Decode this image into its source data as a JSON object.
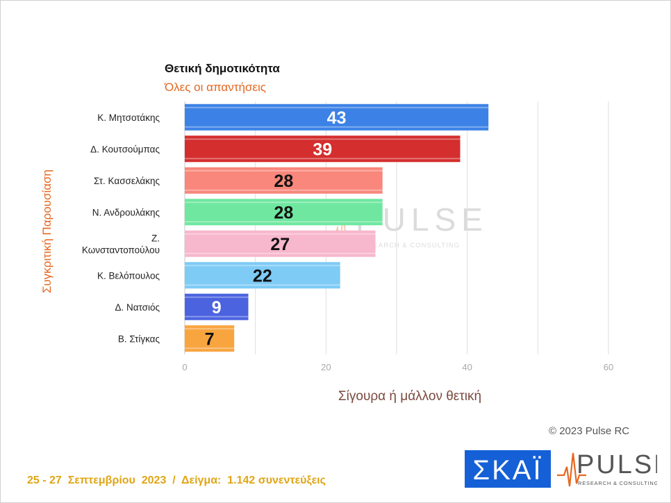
{
  "chart_data": {
    "type": "bar",
    "orientation": "horizontal",
    "title": "Θετική δημοτικότητα",
    "subtitle": "Όλες οι απαντήσεις",
    "xlabel": "Σίγουρα ή μάλλον θετική",
    "ylabel": "Συγκριτική  Παρουσίαση",
    "categories": [
      "Κ. Μητσοτάκης",
      "Δ. Κουτσούμπας",
      "Στ. Κασσελάκης",
      "Ν. Ανδρουλάκης",
      "Ζ.\nΚωνσταντοπούλου",
      "Κ. Βελόπουλος",
      "Δ. Νατσιός",
      "Β. Στίγκας"
    ],
    "values": [
      43,
      39,
      28,
      28,
      27,
      22,
      9,
      7
    ],
    "colors": [
      "#3c82e6",
      "#d42e2e",
      "#f9877b",
      "#6fe7a0",
      "#f7b7cd",
      "#7ecbf6",
      "#4c63e0",
      "#f8a540"
    ],
    "label_colors": [
      "#ffffff",
      "#ffffff",
      "#111111",
      "#111111",
      "#111111",
      "#111111",
      "#ffffff",
      "#111111"
    ],
    "xlim": [
      0,
      60
    ],
    "xticks": [
      "0",
      "20",
      "40",
      "60"
    ],
    "grid": true
  },
  "watermark": {
    "name": "PULSE",
    "tagline": "RESEARCH & CONSULTING"
  },
  "copyright": "© 2023 Pulse RC",
  "footer": "25 - 27  Σεπτεμβρίου  2023  /  Δείγμα:  1.142 συνεντεύξεις",
  "logos": {
    "skai": "ΣΚΑΪ",
    "pulse": "PULSE",
    "pulse_tagline": "RESEARCH & CONSULTING"
  }
}
